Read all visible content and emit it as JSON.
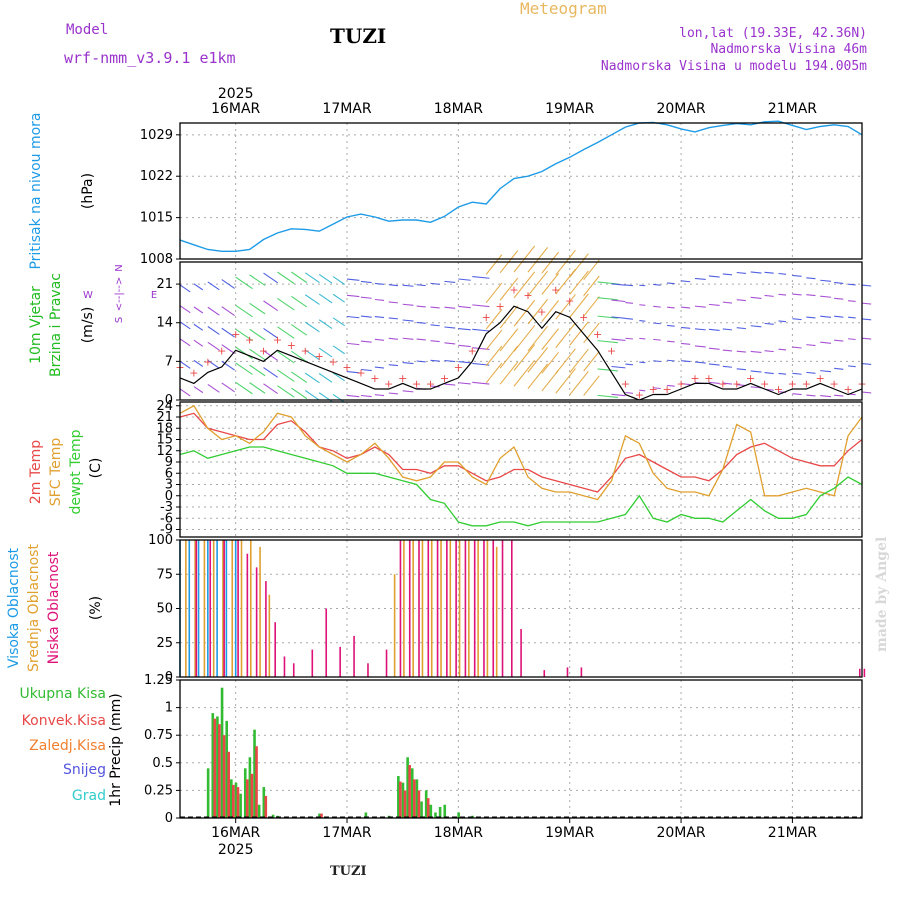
{
  "header": {
    "model_label": "Model",
    "model_name": "wrf-nmm_v3.9.1  e1km",
    "station": "TUZI",
    "product": "Meteogram",
    "lonlat": "lon,lat (19.33E, 42.36N)",
    "elevation": "Nadmorska Visina 46m",
    "model_elevation": "Nadmorska Visina u modelu 194.005m",
    "watermark": "made by Angel",
    "footer_station": "TUZI"
  },
  "colors": {
    "pressure": "#1e9be6",
    "wind_label": "#22bb22",
    "purple": "#9933cc",
    "t2m": "#e84848",
    "sfc": "#e0a030",
    "dewpt": "#33cc33",
    "cloud_high": "#1e9be6",
    "cloud_mid": "#e0a030",
    "cloud_low": "#dd1177",
    "precip_total": "#33bb33",
    "precip_conv": "#e84848",
    "precip_frz": "#f08030",
    "snow": "#5555dd",
    "hail": "#33cccc",
    "grid": "#aaaaaa"
  },
  "chart_data": [
    {
      "type": "line",
      "id": "pressure",
      "title": "Pritisak na nivou mora",
      "ylabel": "(hPa)",
      "ylim": [
        1008,
        1031
      ],
      "yticks": [
        1008,
        1015,
        1022,
        1029
      ],
      "x": [
        0,
        3,
        6,
        9,
        12,
        15,
        18,
        21,
        24,
        27,
        30,
        33,
        36,
        39,
        42,
        45,
        48,
        51,
        54,
        57,
        60,
        63,
        66,
        69,
        72,
        75,
        78,
        81,
        84,
        87,
        90,
        93,
        96,
        99,
        102,
        105,
        108,
        111,
        114,
        117,
        120,
        123,
        126,
        129,
        132,
        135,
        138,
        141,
        144,
        147
      ],
      "series": [
        {
          "values": [
            1011.2,
            1010.4,
            1009.6,
            1009.3,
            1009.3,
            1009.6,
            1011.3,
            1012.4,
            1013.1,
            1013.0,
            1012.7,
            1013.9,
            1015.1,
            1015.6,
            1015.1,
            1014.4,
            1014.6,
            1014.6,
            1014.2,
            1015.2,
            1016.8,
            1017.6,
            1017.3,
            1019.9,
            1021.6,
            1022.0,
            1022.8,
            1024.1,
            1025.2,
            1026.5,
            1027.7,
            1029.0,
            1030.3,
            1031.0,
            1031.1,
            1030.7,
            1030.0,
            1029.5,
            1030.2,
            1030.6,
            1030.9,
            1030.7,
            1031.2,
            1031.3,
            1030.6,
            1029.9,
            1030.4,
            1030.7,
            1030.4,
            1029.0
          ]
        }
      ]
    },
    {
      "type": "line",
      "id": "wind",
      "title": "10m Vjetar",
      "subtitle": "Brzina i Pravac",
      "ylabel": "(m/s)",
      "ylim": [
        0,
        25
      ],
      "yticks": [
        0,
        7,
        14,
        21
      ],
      "compass": [
        "N",
        "W",
        "<--|-->",
        "E",
        "S"
      ],
      "x": [
        0,
        3,
        6,
        9,
        12,
        15,
        18,
        21,
        24,
        27,
        30,
        33,
        36,
        39,
        42,
        45,
        48,
        51,
        54,
        57,
        60,
        63,
        66,
        69,
        72,
        75,
        78,
        81,
        84,
        87,
        90,
        93,
        96,
        99,
        102,
        105,
        108,
        111,
        114,
        117,
        120,
        123,
        126,
        129,
        132,
        135,
        138,
        141,
        144,
        147
      ],
      "series": [
        {
          "name": "speed",
          "values": [
            4,
            3,
            5,
            6,
            9,
            8,
            7,
            9,
            8,
            7,
            6,
            5,
            4,
            3,
            2,
            2,
            3,
            2,
            2,
            3,
            4,
            7,
            12,
            14,
            17,
            16,
            13,
            16,
            15,
            12,
            9,
            5,
            1,
            0,
            1,
            1,
            2,
            3,
            3,
            2,
            2,
            3,
            2,
            1,
            2,
            2,
            3,
            2,
            1,
            2
          ]
        },
        {
          "name": "gust",
          "values": [
            6,
            5,
            7,
            9,
            12,
            11,
            9,
            11,
            10,
            9,
            8,
            7,
            6,
            5,
            4,
            3,
            4,
            3,
            3,
            4,
            6,
            9,
            15,
            17,
            20,
            19,
            16,
            20,
            18,
            15,
            12,
            9,
            3,
            1,
            2,
            2,
            3,
            4,
            4,
            3,
            3,
            4,
            3,
            2,
            3,
            3,
            4,
            3,
            2,
            3
          ]
        }
      ]
    },
    {
      "type": "line",
      "id": "temperature",
      "ylabel": "(C)",
      "ylim": [
        -11,
        25
      ],
      "yticks": [
        -9,
        -6,
        -3,
        0,
        3,
        6,
        9,
        12,
        15,
        18,
        21,
        24
      ],
      "x": [
        0,
        3,
        6,
        9,
        12,
        15,
        18,
        21,
        24,
        27,
        30,
        33,
        36,
        39,
        42,
        45,
        48,
        51,
        54,
        57,
        60,
        63,
        66,
        69,
        72,
        75,
        78,
        81,
        84,
        87,
        90,
        93,
        96,
        99,
        102,
        105,
        108,
        111,
        114,
        117,
        120,
        123,
        126,
        129,
        132,
        135,
        138,
        141,
        144,
        147
      ],
      "series": [
        {
          "name": "2m Temp",
          "values": [
            21,
            22,
            18,
            17,
            16,
            15,
            15,
            19,
            20,
            17,
            13,
            12,
            10,
            11,
            13,
            11,
            7,
            7,
            6,
            8,
            8,
            6,
            4,
            5,
            7,
            7,
            5,
            4,
            3,
            2,
            1,
            5,
            10,
            11,
            9,
            7,
            5,
            5,
            4,
            7,
            11,
            13,
            14,
            12,
            10,
            9,
            8,
            8,
            12,
            15
          ]
        },
        {
          "name": "SFC Temp",
          "values": [
            22,
            24,
            18,
            15,
            16,
            14,
            17,
            22,
            21,
            16,
            13,
            11,
            9,
            11,
            14,
            10,
            5,
            4,
            5,
            9,
            9,
            5,
            3,
            10,
            13,
            5,
            2,
            1,
            1,
            0,
            -1,
            4,
            16,
            14,
            6,
            2,
            1,
            1,
            0,
            7,
            19,
            17,
            0,
            0,
            1,
            2,
            1,
            0,
            16,
            21
          ]
        },
        {
          "name": "dewpt Temp",
          "values": [
            11,
            12,
            10,
            11,
            12,
            13,
            13,
            12,
            11,
            10,
            9,
            8,
            6,
            6,
            6,
            5,
            4,
            3,
            -1,
            -2,
            -7,
            -8,
            -8,
            -7,
            -7,
            -8,
            -7,
            -7,
            -7,
            -7,
            -7,
            -6,
            -5,
            0,
            -6,
            -7,
            -5,
            -6,
            -6,
            -7,
            -4,
            -1,
            -4,
            -6,
            -6,
            -5,
            0,
            2,
            5,
            3
          ]
        }
      ]
    },
    {
      "type": "bar",
      "id": "clouds",
      "ylabel": "(%)",
      "ylim": [
        0,
        100
      ],
      "yticks": [
        0,
        25,
        50,
        75,
        100
      ],
      "series": [
        {
          "name": "Visoka Oblacnost",
          "x": [
            0,
            2,
            4,
            6,
            8,
            10,
            12
          ],
          "values": [
            100,
            100,
            100,
            100,
            100,
            100,
            100
          ]
        },
        {
          "name": "Srednja Oblacnost",
          "x": [
            1,
            3,
            5,
            7,
            9,
            11,
            13,
            15,
            17,
            19,
            46,
            48,
            50,
            52,
            54,
            56,
            58,
            60,
            62,
            64,
            66,
            68
          ],
          "values": [
            100,
            100,
            100,
            100,
            100,
            100,
            100,
            100,
            95,
            60,
            75,
            100,
            100,
            100,
            100,
            100,
            100,
            100,
            100,
            100,
            100,
            95
          ]
        },
        {
          "name": "Niska Oblacnost",
          "x": [
            3,
            6,
            9,
            12,
            14,
            16,
            18,
            20,
            22,
            24,
            28,
            31,
            34,
            37,
            40,
            44,
            47,
            49,
            51,
            53,
            55,
            57,
            59,
            61,
            63,
            65,
            67,
            69,
            71,
            73,
            78,
            83,
            86,
            146,
            147
          ],
          "values": [
            100,
            100,
            100,
            100,
            90,
            80,
            70,
            40,
            15,
            10,
            20,
            50,
            22,
            30,
            10,
            20,
            100,
            100,
            100,
            100,
            100,
            100,
            100,
            100,
            100,
            100,
            100,
            100,
            100,
            35,
            5,
            7,
            7,
            6,
            6
          ]
        }
      ]
    },
    {
      "type": "bar",
      "id": "precip",
      "ylabel": "1hr Precip (mm)",
      "ylim": [
        0,
        1.25
      ],
      "yticks": [
        0,
        0.25,
        0.5,
        0.75,
        1,
        1.25
      ],
      "series": [
        {
          "name": "Ukupna Kisa",
          "x": [
            6,
            7,
            8,
            9,
            10,
            11,
            12,
            13,
            14,
            15,
            16,
            17,
            18,
            20,
            21,
            30,
            40,
            45,
            47,
            48,
            49,
            50,
            51,
            52,
            53,
            54,
            55,
            56,
            57,
            60,
            63
          ],
          "values": [
            0.45,
            0.95,
            0.92,
            1.18,
            0.88,
            0.35,
            0.32,
            0.22,
            0.45,
            0.55,
            0.8,
            0.12,
            0.28,
            0.03,
            0.02,
            0.04,
            0.05,
            0.02,
            0.38,
            0.32,
            0.55,
            0.45,
            0.35,
            0.15,
            0.25,
            0.12,
            0.05,
            0.1,
            0.12,
            0.05,
            0.02
          ]
        },
        {
          "name": "Konvek.Kisa",
          "x": [
            7,
            8,
            9,
            10,
            11,
            12,
            14,
            15,
            16,
            18,
            30,
            47,
            48,
            49,
            50,
            51,
            53
          ],
          "values": [
            0.9,
            0.85,
            0.75,
            0.6,
            0.3,
            0.28,
            0.35,
            0.4,
            0.65,
            0.2,
            0.04,
            0.33,
            0.25,
            0.48,
            0.35,
            0.25,
            0.18
          ]
        },
        {
          "name": "Zaledj.Kisa",
          "x": [],
          "values": []
        },
        {
          "name": "Snijeg",
          "x": [],
          "values": []
        },
        {
          "name": "Grad",
          "x": [],
          "values": []
        }
      ]
    }
  ],
  "time_axis": {
    "hours_total": 147,
    "year": "2025",
    "ticks": [
      {
        "hour": 12,
        "label": "16MAR"
      },
      {
        "hour": 36,
        "label": "17MAR"
      },
      {
        "hour": 60,
        "label": "18MAR"
      },
      {
        "hour": 84,
        "label": "19MAR"
      },
      {
        "hour": 108,
        "label": "20MAR"
      },
      {
        "hour": 132,
        "label": "21MAR"
      }
    ]
  }
}
